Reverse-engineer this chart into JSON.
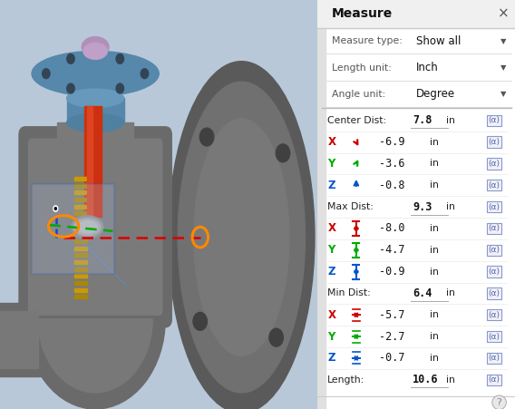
{
  "panel_bg": "#f5f5f5",
  "title": "Measure",
  "measure_type_label": "Measure type:",
  "measure_type_value": "Show all",
  "length_unit_label": "Length unit:",
  "length_unit_value": "Inch",
  "angle_unit_label": "Angle unit:",
  "angle_unit_value": "Degree",
  "rows": [
    {
      "label": "Center Dist:",
      "value": "7.8",
      "unit": "in",
      "section": true,
      "color": "#000000",
      "icon": null
    },
    {
      "label": "X",
      "value": "-6.9",
      "unit": "in",
      "section": false,
      "color": "#cc0000",
      "icon": "diag_down"
    },
    {
      "label": "Y",
      "value": "-3.6",
      "unit": "in",
      "section": false,
      "color": "#00aa00",
      "icon": "diag_up"
    },
    {
      "label": "Z",
      "value": "-0.8",
      "unit": "in",
      "section": false,
      "color": "#0055cc",
      "icon": "arr_up"
    },
    {
      "label": "Max Dist:",
      "value": "9.3",
      "unit": "in",
      "section": true,
      "color": "#000000",
      "icon": null
    },
    {
      "label": "X",
      "value": "-8.0",
      "unit": "in",
      "section": false,
      "color": "#cc0000",
      "icon": "v_arrow"
    },
    {
      "label": "Y",
      "value": "-4.7",
      "unit": "in",
      "section": false,
      "color": "#00aa00",
      "icon": "v_arrow"
    },
    {
      "label": "Z",
      "value": "-0.9",
      "unit": "in",
      "section": false,
      "color": "#0055cc",
      "icon": "v_arrow"
    },
    {
      "label": "Min Dist:",
      "value": "6.4",
      "unit": "in",
      "section": true,
      "color": "#000000",
      "icon": null
    },
    {
      "label": "X",
      "value": "-5.7",
      "unit": "in",
      "section": false,
      "color": "#cc0000",
      "icon": "h_arrow"
    },
    {
      "label": "Y",
      "value": "-2.7",
      "unit": "in",
      "section": false,
      "color": "#00aa00",
      "icon": "h_arrow"
    },
    {
      "label": "Z",
      "value": "-0.7",
      "unit": "in",
      "section": false,
      "color": "#0055cc",
      "icon": "h_arrow"
    },
    {
      "label": "Length:",
      "value": "10.6",
      "unit": "in",
      "section": true,
      "color": "#000000",
      "icon": null
    }
  ],
  "fig_width": 5.68,
  "fig_height": 4.51,
  "dpi": 100
}
